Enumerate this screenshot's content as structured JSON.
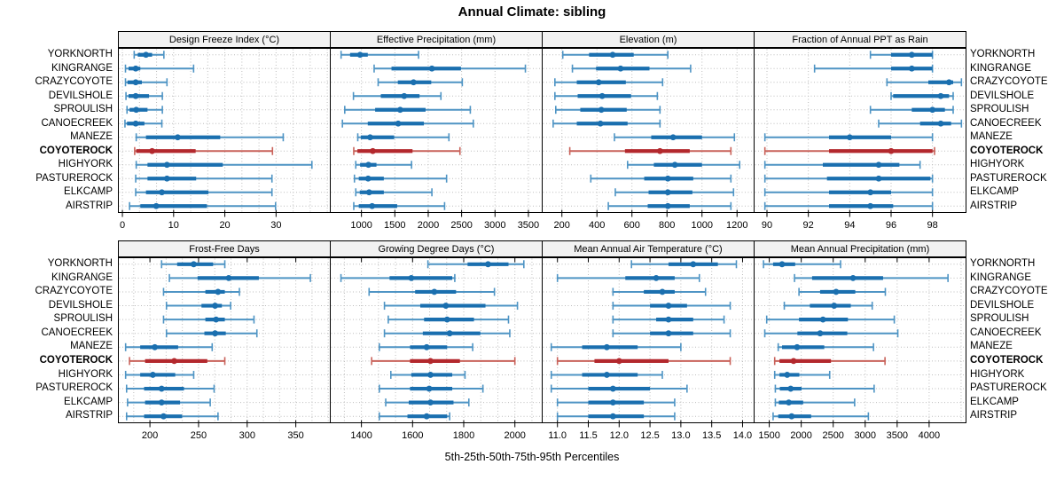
{
  "title": "Annual Climate: sibling",
  "caption": "5th-25th-50th-75th-95th Percentiles",
  "highlight_site": "COYOTEROCK",
  "sites": [
    "YORKNORTH",
    "KINGRANGE",
    "CRAZYCOYOTE",
    "DEVILSHOLE",
    "SPROULISH",
    "CANOECREEK",
    "MANEZE",
    "COYOTEROCK",
    "HIGHYORK",
    "PASTUREROCK",
    "ELKCAMP",
    "AIRSTRIP"
  ],
  "colors": {
    "series_blue": "#1A6FAF",
    "series_blue_light": "#4E94C4",
    "series_red": "#B3282D",
    "series_red_light": "#C9625A",
    "grid": "#BDBDBD",
    "strip_bg": "#F2F2F2",
    "border": "#000000"
  },
  "chart_data": {
    "type": "dotplot-intervals",
    "percentiles": [
      5,
      25,
      50,
      75,
      95
    ],
    "legend_note": "each row shows 5th-25th-50th-75th-95th percentile whisker/box/median-dot",
    "panels": [
      {
        "title": "Design Freeze Index (°C)",
        "row": 0,
        "xlim": [
          -0.7,
          40.5
        ],
        "ticks": [
          0,
          10,
          20,
          30
        ],
        "tick_labels": [
          "0",
          "10",
          "20",
          "30"
        ],
        "values": {
          "YORKNORTH": [
            2.3,
            3.0,
            4.6,
            5.8,
            8.1
          ],
          "KINGRANGE": [
            0.6,
            1.2,
            2.6,
            3.5,
            13.9
          ],
          "CRAZYCOYOTE": [
            0.6,
            1.0,
            2.6,
            3.8,
            8.7
          ],
          "DEVILSHOLE": [
            0.7,
            1.2,
            2.6,
            5.2,
            7.8
          ],
          "SPROULISH": [
            0.9,
            1.4,
            2.7,
            4.9,
            7.8
          ],
          "CANOECREEK": [
            0.5,
            0.9,
            2.6,
            4.3,
            7.7
          ],
          "MANEZE": [
            2.7,
            4.6,
            10.8,
            19.1,
            31.4
          ],
          "COYOTEROCK": [
            2.4,
            2.7,
            5.8,
            14.3,
            29.3
          ],
          "HIGHYORK": [
            2.7,
            4.9,
            8.7,
            19.6,
            37.0
          ],
          "PASTUREROCK": [
            2.6,
            4.9,
            8.7,
            14.4,
            29.2
          ],
          "ELKCAMP": [
            2.6,
            4.6,
            7.7,
            16.8,
            29.2
          ],
          "AIRSTRIP": [
            1.4,
            3.5,
            6.6,
            16.5,
            29.9
          ]
        }
      },
      {
        "title": "Effective Precipitation (mm)",
        "row": 0,
        "xlim": [
          540,
          3700
        ],
        "ticks": [
          1000,
          1500,
          2000,
          2500,
          3000,
          3500
        ],
        "tick_labels": [
          "1000",
          "1500",
          "2000",
          "2500",
          "3000",
          "3500"
        ],
        "values": {
          "YORKNORTH": [
            695,
            830,
            980,
            1095,
            1855
          ],
          "KINGRANGE": [
            1190,
            1450,
            2055,
            2490,
            3455
          ],
          "CRAZYCOYOTE": [
            1250,
            1545,
            1780,
            2045,
            2510
          ],
          "DEVILSHOLE": [
            880,
            1290,
            1640,
            1870,
            2190
          ],
          "SPROULISH": [
            750,
            1205,
            1580,
            1960,
            2630
          ],
          "CANOECREEK": [
            715,
            1095,
            1550,
            1935,
            2675
          ],
          "MANEZE": [
            945,
            990,
            1130,
            1490,
            2310
          ],
          "COYOTEROCK": [
            885,
            940,
            1170,
            1765,
            2475
          ],
          "HIGHYORK": [
            915,
            980,
            1105,
            1225,
            1750
          ],
          "PASTUREROCK": [
            895,
            960,
            1100,
            1335,
            2275
          ],
          "ELKCAMP": [
            915,
            975,
            1115,
            1335,
            2055
          ],
          "AIRSTRIP": [
            885,
            960,
            1160,
            1535,
            2245
          ]
        }
      },
      {
        "title": "Elevation (m)",
        "row": 0,
        "xlim": [
          90,
          1295
        ],
        "ticks": [
          200,
          400,
          600,
          800,
          1000,
          1200
        ],
        "tick_labels": [
          "200",
          "400",
          "600",
          "800",
          "1000",
          "1200"
        ],
        "values": {
          "YORKNORTH": [
            205,
            355,
            490,
            610,
            805
          ],
          "KINGRANGE": [
            260,
            395,
            535,
            700,
            935
          ],
          "CRAZYCOYOTE": [
            160,
            285,
            410,
            565,
            775
          ],
          "DEVILSHOLE": [
            160,
            290,
            430,
            595,
            745
          ],
          "SPROULISH": [
            165,
            305,
            425,
            570,
            760
          ],
          "CANOECREEK": [
            150,
            285,
            420,
            575,
            760
          ],
          "MANEZE": [
            500,
            710,
            835,
            1000,
            1185
          ],
          "COYOTEROCK": [
            245,
            560,
            760,
            930,
            1165
          ],
          "HIGHYORK": [
            575,
            725,
            845,
            1000,
            1215
          ],
          "PASTUREROCK": [
            365,
            670,
            805,
            950,
            1165
          ],
          "ELKCAMP": [
            505,
            695,
            805,
            945,
            1180
          ],
          "AIRSTRIP": [
            465,
            690,
            805,
            930,
            1165
          ]
        }
      },
      {
        "title": "Fraction of Annual PPT as Rain",
        "row": 0,
        "xlim": [
          89.4,
          99.6
        ],
        "ticks": [
          90,
          92,
          94,
          96,
          98
        ],
        "tick_labels": [
          "90",
          "92",
          "94",
          "96",
          "98"
        ],
        "values": {
          "YORKNORTH": [
            95.0,
            96.0,
            97.0,
            98.0,
            98.0
          ],
          "KINGRANGE": [
            92.3,
            96.0,
            97.0,
            98.0,
            98.0
          ],
          "CRAZYCOYOTE": [
            95.8,
            97.8,
            98.8,
            99.0,
            99.4
          ],
          "DEVILSHOLE": [
            96.0,
            96.1,
            98.4,
            98.8,
            99.0
          ],
          "SPROULISH": [
            95.0,
            97.0,
            98.0,
            98.6,
            99.0
          ],
          "CANOECREEK": [
            95.4,
            97.4,
            98.4,
            98.9,
            99.4
          ],
          "MANEZE": [
            89.9,
            93.0,
            94.0,
            96.0,
            98.0
          ],
          "COYOTEROCK": [
            89.9,
            93.0,
            96.0,
            98.0,
            98.1
          ],
          "HIGHYORK": [
            89.9,
            92.7,
            95.4,
            96.4,
            97.4
          ],
          "PASTUREROCK": [
            89.9,
            92.9,
            95.4,
            97.9,
            98.0
          ],
          "ELKCAMP": [
            89.9,
            93.0,
            95.0,
            96.0,
            98.0
          ],
          "AIRSTRIP": [
            89.9,
            93.0,
            95.0,
            96.1,
            98.0
          ]
        }
      },
      {
        "title": "Frost-Free Days",
        "row": 1,
        "xlim": [
          168,
          385
        ],
        "ticks": [
          200,
          250,
          300,
          350
        ],
        "tick_labels": [
          "200",
          "250",
          "300",
          "350"
        ],
        "values": {
          "YORKNORTH": [
            212,
            228,
            245,
            265,
            277
          ],
          "KINGRANGE": [
            220,
            249,
            281,
            312,
            365
          ],
          "CRAZYCOYOTE": [
            214,
            257,
            270,
            277,
            292
          ],
          "DEVILSHOLE": [
            217,
            253,
            267,
            274,
            283
          ],
          "SPROULISH": [
            214,
            257,
            268,
            277,
            307
          ],
          "CANOECREEK": [
            217,
            256,
            267,
            278,
            310
          ],
          "MANEZE": [
            175,
            190,
            205,
            229,
            264
          ],
          "COYOTEROCK": [
            179,
            195,
            225,
            259,
            277
          ],
          "HIGHYORK": [
            175,
            190,
            203,
            226,
            245
          ],
          "PASTUREROCK": [
            176,
            194,
            212,
            235,
            266
          ],
          "ELKCAMP": [
            177,
            195,
            212,
            231,
            262
          ],
          "AIRSTRIP": [
            176,
            194,
            214,
            233,
            270
          ]
        }
      },
      {
        "title": "Growing Degree Days (°C)",
        "row": 1,
        "xlim": [
          1280,
          2105
        ],
        "ticks": [
          1400,
          1600,
          1800,
          2000
        ],
        "tick_labels": [
          "1400",
          "1600",
          "1800",
          "2000"
        ],
        "values": {
          "YORKNORTH": [
            1660,
            1815,
            1895,
            1975,
            2035
          ],
          "KINGRANGE": [
            1320,
            1510,
            1595,
            1755,
            1765
          ],
          "CRAZYCOYOTE": [
            1430,
            1610,
            1685,
            1770,
            1920
          ],
          "DEVILSHOLE": [
            1490,
            1630,
            1730,
            1885,
            2010
          ],
          "SPROULISH": [
            1505,
            1645,
            1735,
            1840,
            1975
          ],
          "CANOECREEK": [
            1490,
            1640,
            1745,
            1865,
            1980
          ],
          "MANEZE": [
            1470,
            1590,
            1655,
            1735,
            1835
          ],
          "COYOTEROCK": [
            1440,
            1590,
            1670,
            1785,
            2000
          ],
          "HIGHYORK": [
            1515,
            1595,
            1670,
            1755,
            1805
          ],
          "PASTUREROCK": [
            1470,
            1590,
            1665,
            1755,
            1875
          ],
          "ELKCAMP": [
            1495,
            1585,
            1670,
            1760,
            1820
          ],
          "AIRSTRIP": [
            1470,
            1580,
            1655,
            1735,
            1745
          ]
        }
      },
      {
        "title": "Mean Annual Air Temperature (°C)",
        "row": 1,
        "xlim": [
          10.76,
          14.18
        ],
        "ticks": [
          11.0,
          11.5,
          12.0,
          12.5,
          13.0,
          13.5,
          14.0
        ],
        "tick_labels": [
          "11.0",
          "11.5",
          "12.0",
          "12.5",
          "13.0",
          "13.5",
          "14.0"
        ],
        "values": {
          "YORKNORTH": [
            12.2,
            12.8,
            13.2,
            13.6,
            13.9
          ],
          "KINGRANGE": [
            11.0,
            12.1,
            12.6,
            12.9,
            13.3
          ],
          "CRAZYCOYOTE": [
            11.9,
            12.4,
            12.7,
            12.9,
            13.4
          ],
          "DEVILSHOLE": [
            11.9,
            12.5,
            12.8,
            13.1,
            13.8
          ],
          "SPROULISH": [
            11.9,
            12.6,
            12.8,
            13.2,
            13.7
          ],
          "CANOECREEK": [
            11.9,
            12.5,
            12.8,
            13.2,
            13.8
          ],
          "MANEZE": [
            10.9,
            11.4,
            11.8,
            12.3,
            13.0
          ],
          "COYOTEROCK": [
            11.0,
            11.6,
            12.0,
            12.8,
            13.8
          ],
          "HIGHYORK": [
            10.9,
            11.4,
            11.8,
            12.3,
            12.7
          ],
          "PASTUREROCK": [
            10.9,
            11.5,
            11.9,
            12.5,
            13.1
          ],
          "ELKCAMP": [
            11.0,
            11.5,
            11.9,
            12.4,
            12.9
          ],
          "AIRSTRIP": [
            11.0,
            11.5,
            11.9,
            12.4,
            12.9
          ]
        }
      },
      {
        "title": "Mean Annual Precipitation (mm)",
        "row": 1,
        "xlim": [
          1270,
          4570
        ],
        "ticks": [
          1500,
          2000,
          2500,
          3000,
          3500,
          4000
        ],
        "tick_labels": [
          "1500",
          "2000",
          "2500",
          "3000",
          "3500",
          "4000"
        ],
        "values": {
          "YORKNORTH": [
            1410,
            1560,
            1700,
            1905,
            2615
          ],
          "KINGRANGE": [
            1895,
            2170,
            2810,
            3280,
            4295
          ],
          "CRAZYCOYOTE": [
            1965,
            2295,
            2545,
            2845,
            3315
          ],
          "DEVILSHOLE": [
            1735,
            2135,
            2515,
            2775,
            3110
          ],
          "SPROULISH": [
            1460,
            1965,
            2340,
            2730,
            3455
          ],
          "CANOECREEK": [
            1430,
            1940,
            2295,
            2720,
            3510
          ],
          "MANEZE": [
            1640,
            1700,
            1935,
            2360,
            3130
          ],
          "COYOTEROCK": [
            1585,
            1660,
            1880,
            2465,
            3310
          ],
          "HIGHYORK": [
            1585,
            1660,
            1780,
            1970,
            2445
          ],
          "PASTUREROCK": [
            1595,
            1665,
            1835,
            2005,
            3140
          ],
          "ELKCAMP": [
            1595,
            1650,
            1805,
            2030,
            2835
          ],
          "AIRSTRIP": [
            1560,
            1640,
            1850,
            2155,
            3050
          ]
        }
      }
    ]
  }
}
